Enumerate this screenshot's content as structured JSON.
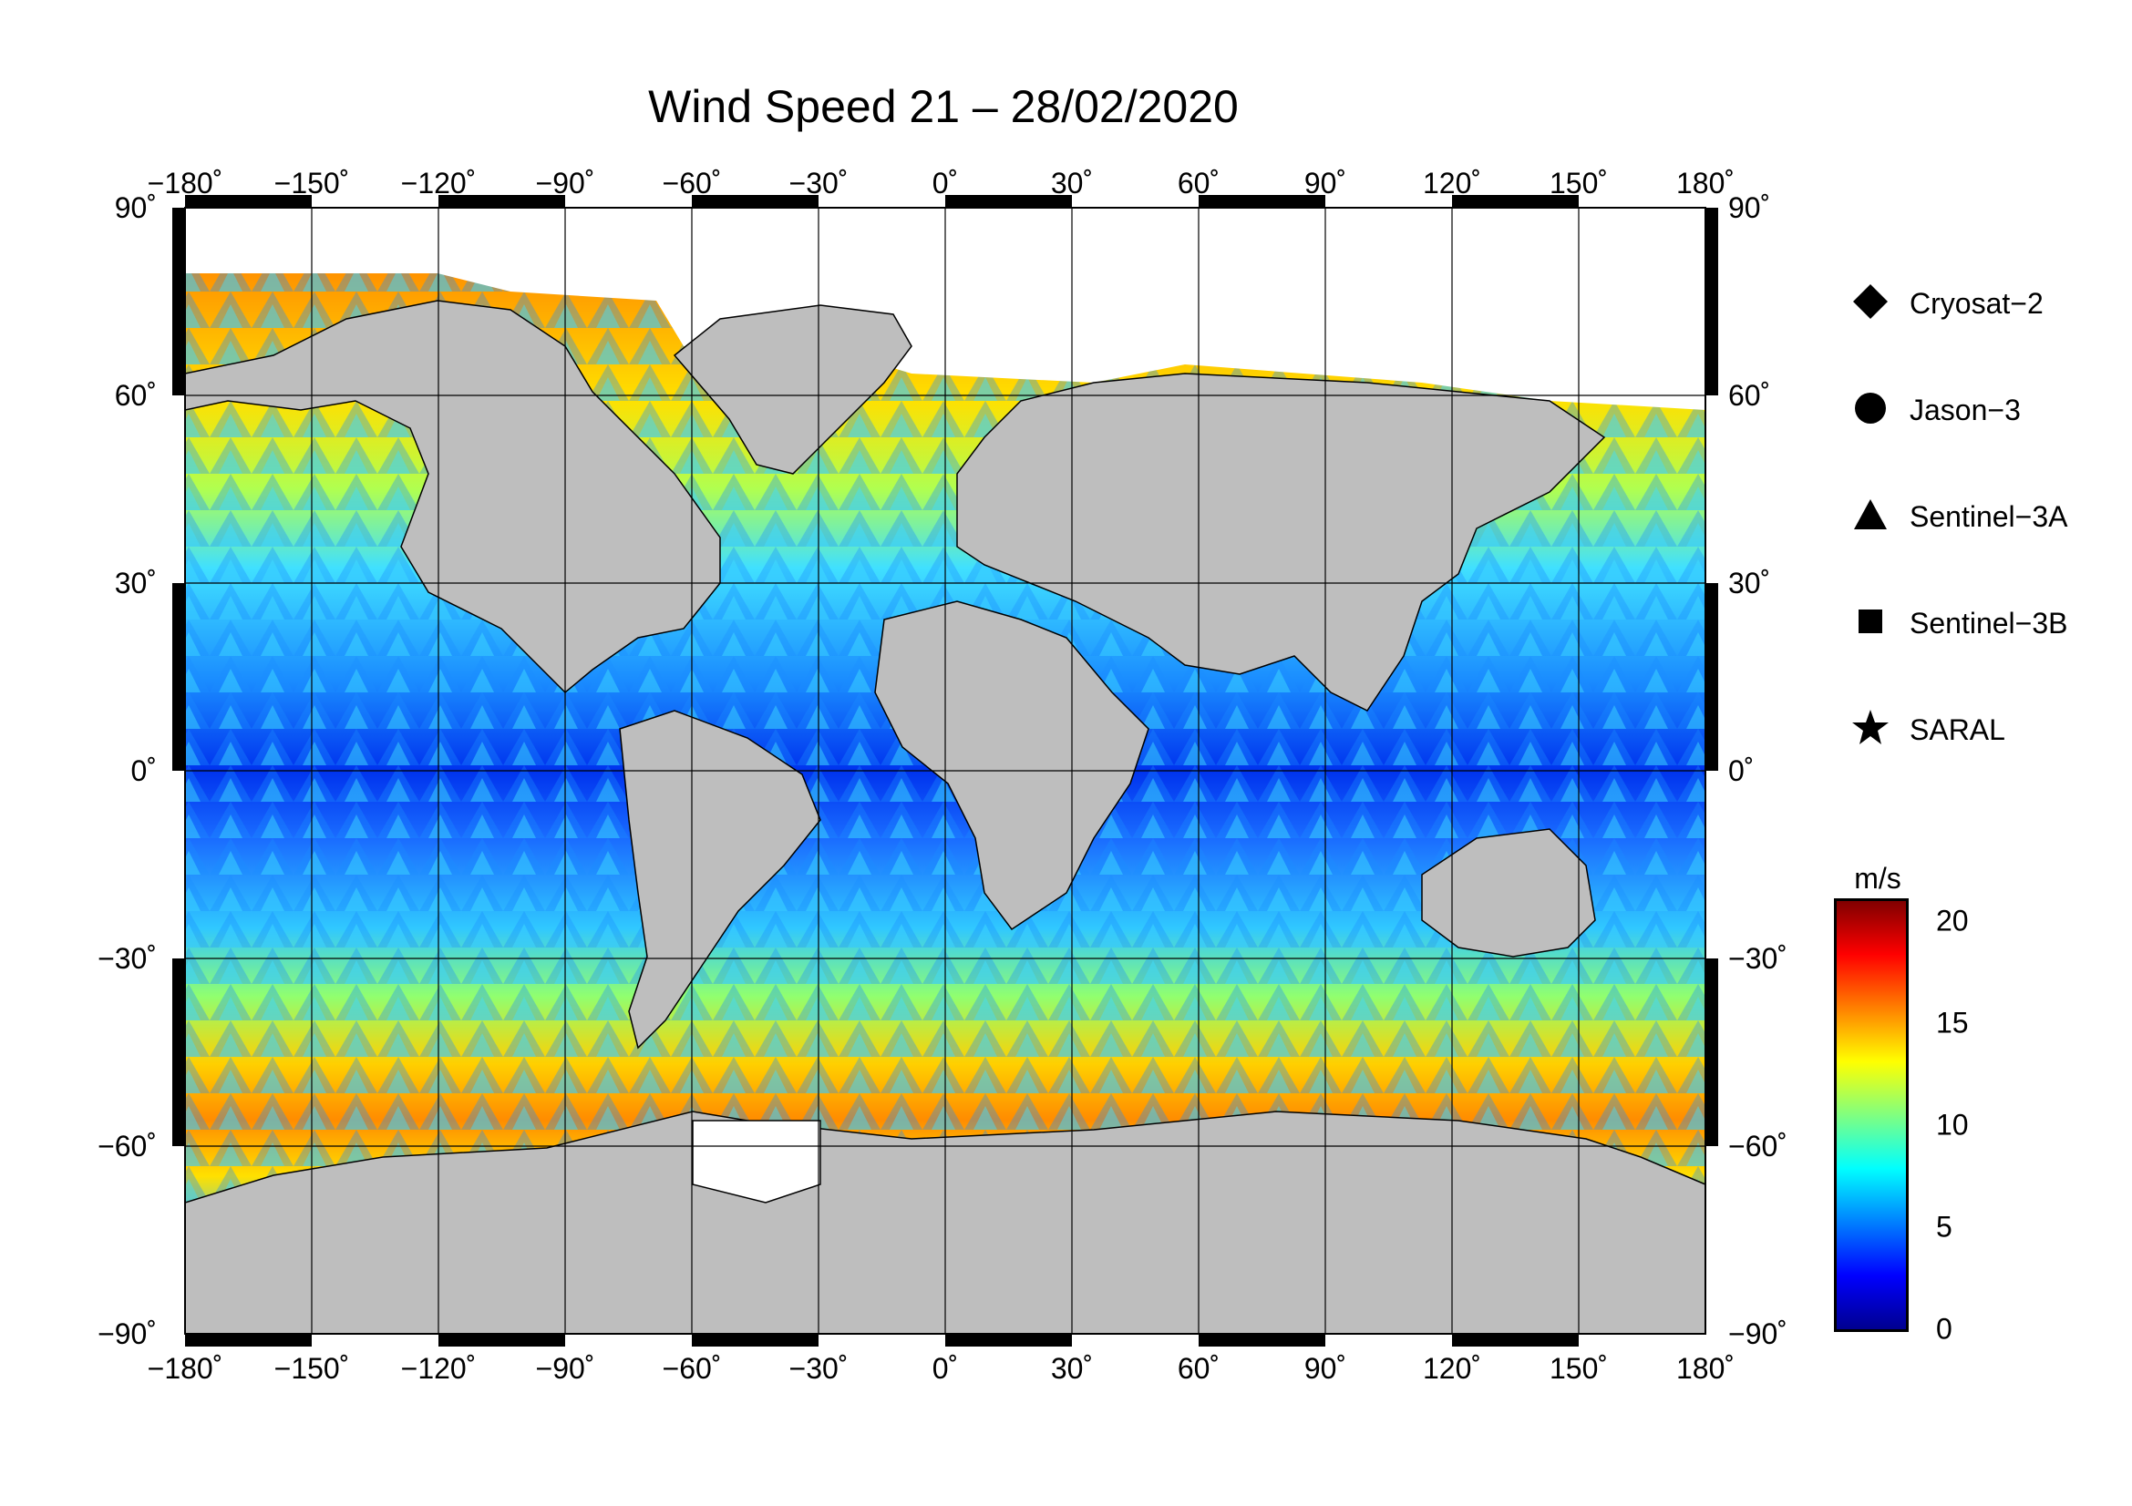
{
  "title": "Wind Speed 21 – 28/02/2020",
  "lon_ticks": [
    "−180˚",
    "−150˚",
    "−120˚",
    "−90˚",
    "−60˚",
    "−30˚",
    "0˚",
    "30˚",
    "60˚",
    "90˚",
    "120˚",
    "150˚",
    "180˚"
  ],
  "lat_ticks": [
    "90˚",
    "60˚",
    "30˚",
    "0˚",
    "−30˚",
    "−60˚",
    "−90˚"
  ],
  "legend": [
    {
      "label": "Cryosat−2",
      "icon": "diamond-icon"
    },
    {
      "label": "Jason−3",
      "icon": "circle-icon"
    },
    {
      "label": "Sentinel−3A",
      "icon": "triangle-icon"
    },
    {
      "label": "Sentinel−3B",
      "icon": "square-icon"
    },
    {
      "label": "SARAL",
      "icon": "star-icon"
    }
  ],
  "colorbar": {
    "unit": "m/s",
    "ticks": [
      "20",
      "15",
      "10",
      "5",
      "0"
    ],
    "range": [
      0,
      21
    ],
    "colors": [
      "#00008f",
      "#0000ff",
      "#0080ff",
      "#00ffff",
      "#80ff80",
      "#ffff00",
      "#ff8000",
      "#ff0000",
      "#800000"
    ]
  },
  "map": {
    "projection": "equirectangular",
    "lon_range": [
      -180,
      180
    ],
    "lat_range": [
      -90,
      90
    ],
    "grid_step_deg": 30,
    "land_color": "#bebebe",
    "ice_color": "#ffffff"
  }
}
